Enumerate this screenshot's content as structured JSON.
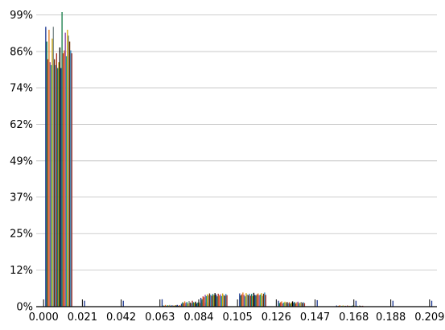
{
  "chart_data": {
    "type": "bar",
    "title": "",
    "xlabel": "",
    "ylabel": "",
    "xlim": [
      -0.004,
      0.213
    ],
    "ylim": [
      0,
      100
    ],
    "grid": "horizontal",
    "legend": "none",
    "x_ticks": [
      {
        "value": 0.0,
        "label": "0.000"
      },
      {
        "value": 0.021,
        "label": "0.021"
      },
      {
        "value": 0.042,
        "label": "0.042"
      },
      {
        "value": 0.063,
        "label": "0.063"
      },
      {
        "value": 0.084,
        "label": "0.084"
      },
      {
        "value": 0.105,
        "label": "0.105"
      },
      {
        "value": 0.126,
        "label": "0.126"
      },
      {
        "value": 0.147,
        "label": "0.147"
      },
      {
        "value": 0.168,
        "label": "0.168"
      },
      {
        "value": 0.188,
        "label": "0.188"
      },
      {
        "value": 0.209,
        "label": "0.209"
      }
    ],
    "y_ticks": [
      {
        "value": 0,
        "label": "0%"
      },
      {
        "value": 12.4,
        "label": "12%"
      },
      {
        "value": 24.8,
        "label": "25%"
      },
      {
        "value": 37.2,
        "label": "37%"
      },
      {
        "value": 49.5,
        "label": "49%"
      },
      {
        "value": 61.9,
        "label": "62%"
      },
      {
        "value": 74.3,
        "label": "74%"
      },
      {
        "value": 86.6,
        "label": "86%"
      },
      {
        "value": 99.0,
        "label": "99%"
      }
    ],
    "colors": [
      "#1f3a93",
      "#1a7f4b",
      "#c0392b",
      "#e67e22",
      "#8e44ad",
      "#16a085",
      "#d4ac0d",
      "#7f8c8d",
      "#6e2c00",
      "#2e86c1",
      "#a93226",
      "#117864",
      "#b7950b",
      "#000000"
    ],
    "groups": [
      {
        "x": 0.0,
        "values": [
          95,
          90,
          84,
          94,
          83,
          82,
          91,
          95,
          84,
          82,
          86,
          81,
          83,
          88,
          81,
          100,
          86,
          87,
          93,
          85,
          94,
          92,
          90,
          87,
          86
        ]
      },
      {
        "x": 0.021,
        "values": [
          2,
          0,
          0,
          0,
          0,
          0,
          0,
          0,
          0,
          0,
          0,
          0,
          0,
          0,
          0,
          0,
          0,
          0,
          0,
          0,
          0,
          0,
          0,
          0,
          0
        ]
      },
      {
        "x": 0.042,
        "values": [
          2,
          0,
          0,
          0,
          0,
          0,
          0,
          0,
          0,
          0,
          0,
          0,
          0,
          0,
          0,
          0,
          0,
          0,
          0,
          0,
          0,
          0,
          0,
          0,
          0
        ]
      },
      {
        "x": 0.063,
        "values": [
          2.5,
          0.4,
          0.3,
          0.6,
          0.3,
          0.5,
          0.4,
          0.6,
          0.3,
          0.5,
          0.4,
          0.3,
          0.5,
          0.4,
          0.6,
          0.3,
          0.5,
          0.4,
          0.3,
          0.5,
          0.4,
          0.6,
          0.3,
          0.5,
          0.4
        ]
      },
      {
        "x": 0.0735,
        "values": [
          1.0,
          1.5,
          1.2,
          1.8,
          1.3,
          1.6,
          1.1,
          1.9,
          1.4,
          1.2,
          2.0,
          1.5,
          1.3,
          1.7,
          1.1,
          1.4,
          1.6,
          1.2,
          1.8,
          1.3,
          1.0,
          1.5,
          1.2,
          1.7,
          1.4
        ]
      },
      {
        "x": 0.084,
        "values": [
          3.0,
          2.5,
          3.5,
          3.2,
          4.0,
          3.6,
          4.2,
          3.8,
          4.5,
          4.0,
          3.7,
          4.3,
          3.9,
          4.6,
          4.1,
          3.5,
          4.4,
          3.8,
          4.2,
          3.6,
          4.5,
          4.0,
          3.7,
          4.3,
          3.9
        ]
      },
      {
        "x": 0.105,
        "values": [
          4.5,
          3.8,
          4.2,
          4.8,
          4.0,
          3.5,
          4.6,
          4.1,
          3.9,
          4.4,
          3.7,
          4.3,
          3.6,
          4.7,
          4.0,
          3.8,
          4.2,
          4.5,
          3.9,
          4.1,
          4.6,
          3.7,
          4.4,
          4.8,
          4.0
        ]
      },
      {
        "x": 0.126,
        "values": [
          2.0,
          1.2,
          1.5,
          1.8,
          1.1,
          1.4,
          1.7,
          1.3,
          1.6,
          1.2,
          1.5,
          1.0,
          1.4,
          1.8,
          1.3,
          1.6,
          1.1,
          1.5,
          1.7,
          1.2,
          1.4,
          1.6,
          1.3,
          1.5,
          1.2
        ]
      },
      {
        "x": 0.147,
        "values": [
          2.2,
          0,
          0,
          0,
          0,
          0,
          0,
          0,
          0,
          0,
          0,
          0,
          0,
          0,
          0,
          0,
          0,
          0,
          0,
          0,
          0,
          0,
          0,
          0,
          0
        ]
      },
      {
        "x": 0.1575,
        "values": [
          0.4,
          0.2,
          0.3,
          0.5,
          0.2,
          0.3,
          0.4,
          0.2,
          0.3,
          0.2,
          0.4,
          0.2,
          0.3,
          0.2,
          0.3,
          0.4,
          0.2,
          0.3,
          0.2,
          0.3,
          0.2,
          0.4,
          0.3,
          0.2,
          0.3
        ]
      },
      {
        "x": 0.168,
        "values": [
          2.0,
          0,
          0,
          0,
          0,
          0,
          0,
          0,
          0,
          0,
          0,
          0,
          0,
          0,
          0,
          0,
          0,
          0,
          0,
          0,
          0,
          0,
          0,
          0,
          0
        ]
      },
      {
        "x": 0.188,
        "values": [
          2.0,
          0,
          0,
          0,
          0,
          0,
          0,
          0,
          0,
          0,
          0,
          0,
          0,
          0,
          0,
          0,
          0,
          0,
          0,
          0,
          0,
          0,
          0,
          0,
          0
        ]
      },
      {
        "x": 0.209,
        "values": [
          2.0,
          0,
          0,
          0,
          0,
          0,
          0,
          0,
          0,
          0,
          0,
          0,
          0,
          0,
          0,
          0,
          0,
          0,
          0,
          0,
          0,
          0,
          0,
          0,
          0
        ]
      }
    ]
  }
}
